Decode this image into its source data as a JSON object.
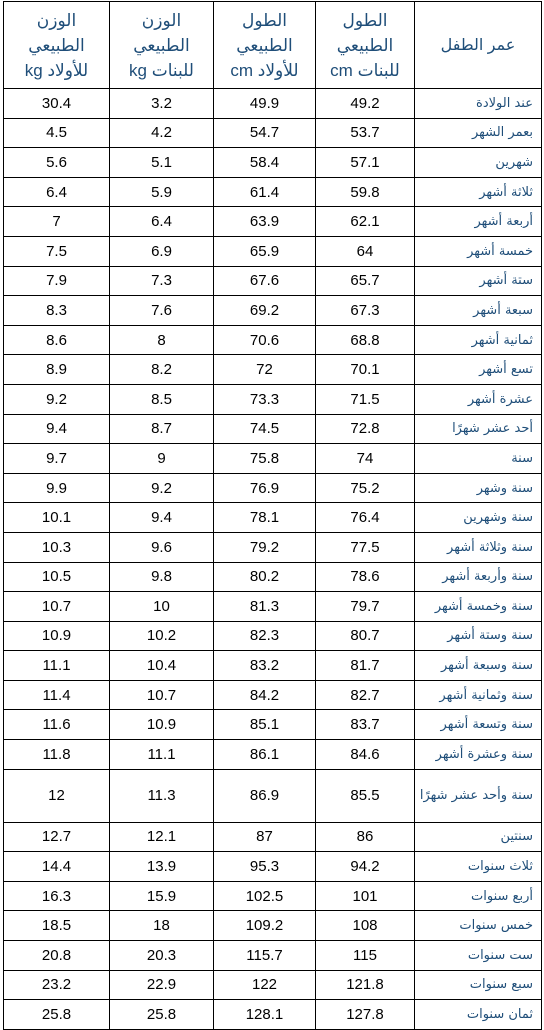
{
  "headers": {
    "age": "عمر الطفل",
    "height_girls": [
      "الطول",
      "الطبيعي",
      "للبنات cm"
    ],
    "height_boys": [
      "الطول",
      "الطبيعي",
      "للأولاد cm"
    ],
    "weight_girls": [
      "الوزن",
      "الطبيعي",
      "للبنات kg"
    ],
    "weight_boys": [
      "الوزن",
      "الطبيعي",
      "للأولاد kg"
    ]
  },
  "rows": [
    {
      "age": "عند الولادة",
      "height_girls": "49.2",
      "height_boys": "49.9",
      "weight_girls": "3.2",
      "weight_boys": "30.4"
    },
    {
      "age": "بعمر الشهر",
      "height_girls": "53.7",
      "height_boys": "54.7",
      "weight_girls": "4.2",
      "weight_boys": "4.5"
    },
    {
      "age": "شهرين",
      "height_girls": "57.1",
      "height_boys": "58.4",
      "weight_girls": "5.1",
      "weight_boys": "5.6"
    },
    {
      "age": "ثلاثة أشهر",
      "height_girls": "59.8",
      "height_boys": "61.4",
      "weight_girls": "5.9",
      "weight_boys": "6.4"
    },
    {
      "age": "أربعة أشهر",
      "height_girls": "62.1",
      "height_boys": "63.9",
      "weight_girls": "6.4",
      "weight_boys": "7"
    },
    {
      "age": "خمسة أشهر",
      "height_girls": "64",
      "height_boys": "65.9",
      "weight_girls": "6.9",
      "weight_boys": "7.5"
    },
    {
      "age": "ستة أشهر",
      "height_girls": "65.7",
      "height_boys": "67.6",
      "weight_girls": "7.3",
      "weight_boys": "7.9"
    },
    {
      "age": "سبعة أشهر",
      "height_girls": "67.3",
      "height_boys": "69.2",
      "weight_girls": "7.6",
      "weight_boys": "8.3"
    },
    {
      "age": "ثمانية أشهر",
      "height_girls": "68.8",
      "height_boys": "70.6",
      "weight_girls": "8",
      "weight_boys": "8.6"
    },
    {
      "age": "تسع أشهر",
      "height_girls": "70.1",
      "height_boys": "72",
      "weight_girls": "8.2",
      "weight_boys": "8.9"
    },
    {
      "age": "عشرة أشهر",
      "height_girls": "71.5",
      "height_boys": "73.3",
      "weight_girls": "8.5",
      "weight_boys": "9.2"
    },
    {
      "age": "أحد عشر شهرًا",
      "height_girls": "72.8",
      "height_boys": "74.5",
      "weight_girls": "8.7",
      "weight_boys": "9.4"
    },
    {
      "age": "سنة",
      "height_girls": "74",
      "height_boys": "75.8",
      "weight_girls": "9",
      "weight_boys": "9.7"
    },
    {
      "age": "سنة وشهر",
      "height_girls": "75.2",
      "height_boys": "76.9",
      "weight_girls": "9.2",
      "weight_boys": "9.9"
    },
    {
      "age": "سنة وشهرين",
      "height_girls": "76.4",
      "height_boys": "78.1",
      "weight_girls": "9.4",
      "weight_boys": "10.1"
    },
    {
      "age": "سنة وثلاثة أشهر",
      "height_girls": "77.5",
      "height_boys": "79.2",
      "weight_girls": "9.6",
      "weight_boys": "10.3"
    },
    {
      "age": "سنة وأربعة أشهر",
      "height_girls": "78.6",
      "height_boys": "80.2",
      "weight_girls": "9.8",
      "weight_boys": "10.5"
    },
    {
      "age": "سنة وخمسة أشهر",
      "height_girls": "79.7",
      "height_boys": "81.3",
      "weight_girls": "10",
      "weight_boys": "10.7"
    },
    {
      "age": "سنة وستة أشهر",
      "height_girls": "80.7",
      "height_boys": "82.3",
      "weight_girls": "10.2",
      "weight_boys": "10.9"
    },
    {
      "age": "سنة وسبعة أشهر",
      "height_girls": "81.7",
      "height_boys": "83.2",
      "weight_girls": "10.4",
      "weight_boys": "11.1"
    },
    {
      "age": "سنة وثمانية أشهر",
      "height_girls": "82.7",
      "height_boys": "84.2",
      "weight_girls": "10.7",
      "weight_boys": "11.4"
    },
    {
      "age": "سنة وتسعة أشهر",
      "height_girls": "83.7",
      "height_boys": "85.1",
      "weight_girls": "10.9",
      "weight_boys": "11.6"
    },
    {
      "age": "سنة وعشرة أشهر",
      "height_girls": "84.6",
      "height_boys": "86.1",
      "weight_girls": "11.1",
      "weight_boys": "11.8"
    },
    {
      "age": "سنة وأحد عشر شهرًا",
      "height_girls": "85.5",
      "height_boys": "86.9",
      "weight_girls": "11.3",
      "weight_boys": "12"
    },
    {
      "age": "سنتين",
      "height_girls": "86",
      "height_boys": "87",
      "weight_girls": "12.1",
      "weight_boys": "12.7"
    },
    {
      "age": "ثلاث سنوات",
      "height_girls": "94.2",
      "height_boys": "95.3",
      "weight_girls": "13.9",
      "weight_boys": "14.4"
    },
    {
      "age": "أربع سنوات",
      "height_girls": "101",
      "height_boys": "102.5",
      "weight_girls": "15.9",
      "weight_boys": "16.3"
    },
    {
      "age": "خمس سنوات",
      "height_girls": "108",
      "height_boys": "109.2",
      "weight_girls": "18",
      "weight_boys": "18.5"
    },
    {
      "age": "ست سنوات",
      "height_girls": "115",
      "height_boys": "115.7",
      "weight_girls": "20.3",
      "weight_boys": "20.8"
    },
    {
      "age": "سبع سنوات",
      "height_girls": "121.8",
      "height_boys": "122",
      "weight_girls": "22.9",
      "weight_boys": "23.2"
    },
    {
      "age": "ثمان سنوات",
      "height_girls": "127.8",
      "height_boys": "128.1",
      "weight_girls": "25.8",
      "weight_boys": "25.8"
    }
  ]
}
